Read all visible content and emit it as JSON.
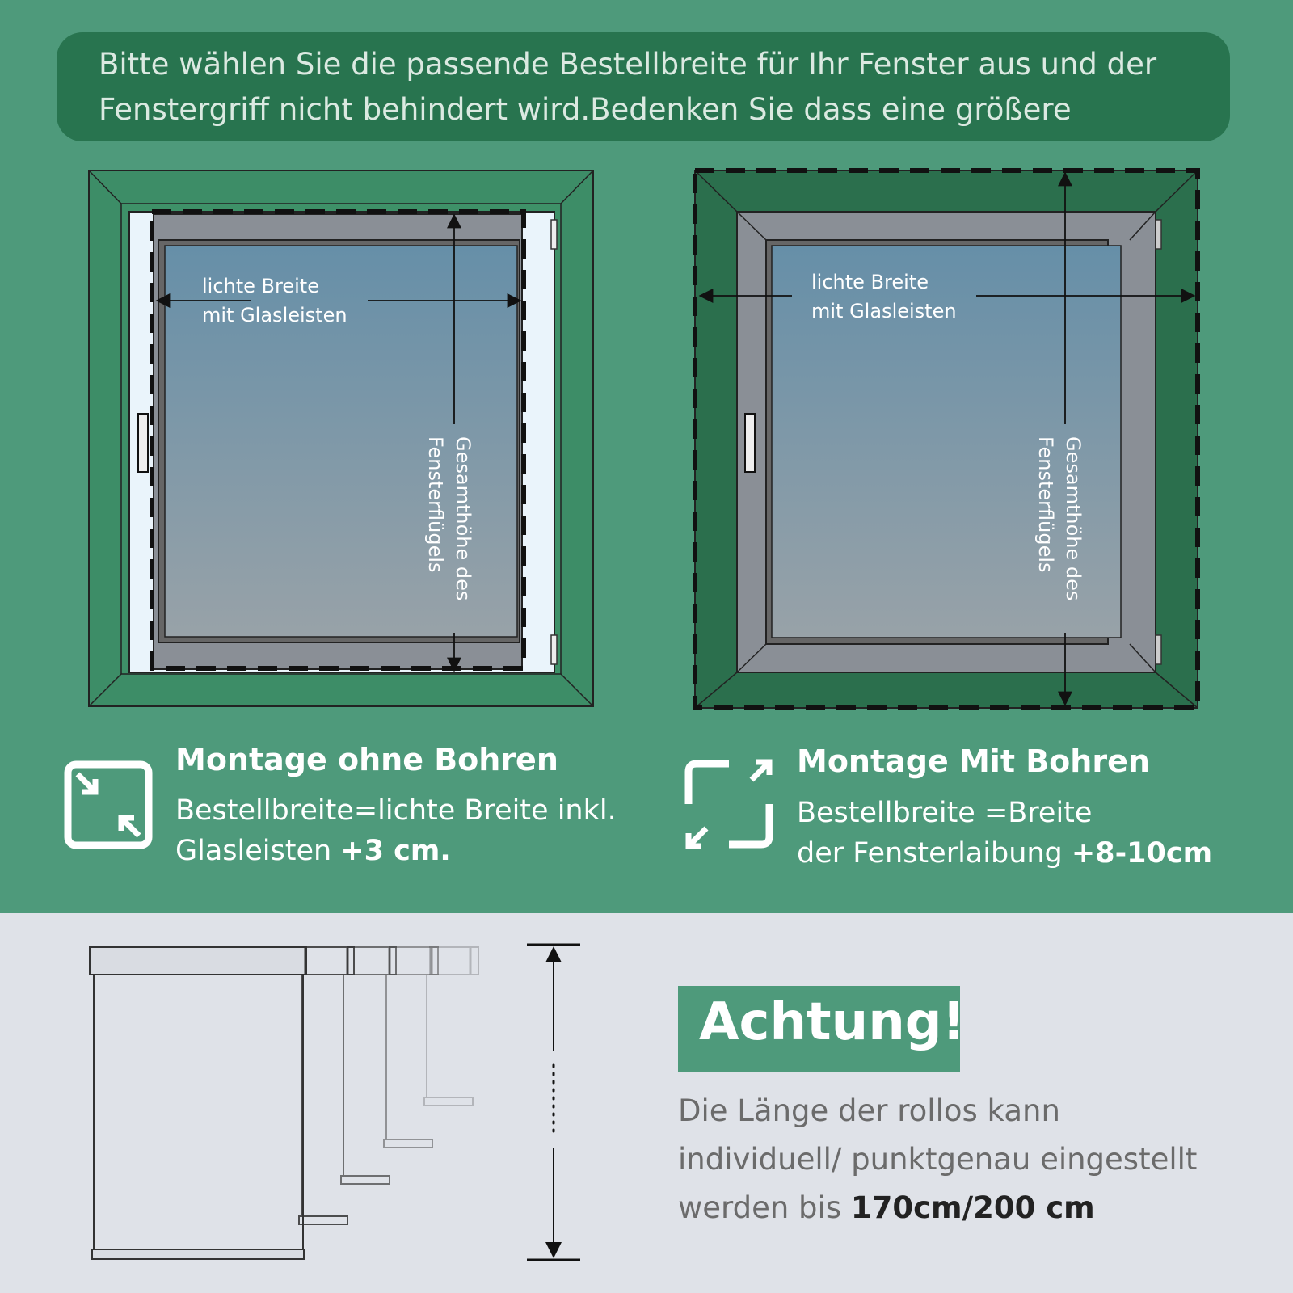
{
  "banner": {
    "line1": "Bitte wählen Sie die passende Bestellbreite für Ihr Fenster aus und der",
    "line2": "Fenstergriff nicht behindert wird.Bedenken Sie dass eine größere"
  },
  "left_window": {
    "width_label_1": "lichte Breite",
    "width_label_2": "mit Glasleisten",
    "height_label": "Gesamthöhe des\nFensterflügels"
  },
  "right_window": {
    "width_label_1": "lichte Breite",
    "width_label_2": "mit Glasleisten",
    "height_label": "Gesamthöhe des\nFensterflügels"
  },
  "mount_no_drill": {
    "title": "Montage ohne Bohren",
    "line1": "Bestellbreite=lichte Breite inkl.",
    "line2": "Glasleisten ",
    "emphasis": "+3 cm."
  },
  "mount_drill": {
    "title": "Montage Mit Bohren",
    "line1": "Bestellbreite =Breite",
    "line2": "der Fensterlaibung ",
    "emphasis": "+8-10cm"
  },
  "warning": {
    "title": "Achtung!",
    "line1": "Die Länge der rollos kann",
    "line2": "individuell/ punktgenau eingestellt",
    "line3": "werden bis ",
    "emphasis": "170cm/200 cm"
  },
  "colors": {
    "green": "#4e9a7b",
    "dark_green": "#28744f",
    "light_bg": "#dfe2e8"
  }
}
